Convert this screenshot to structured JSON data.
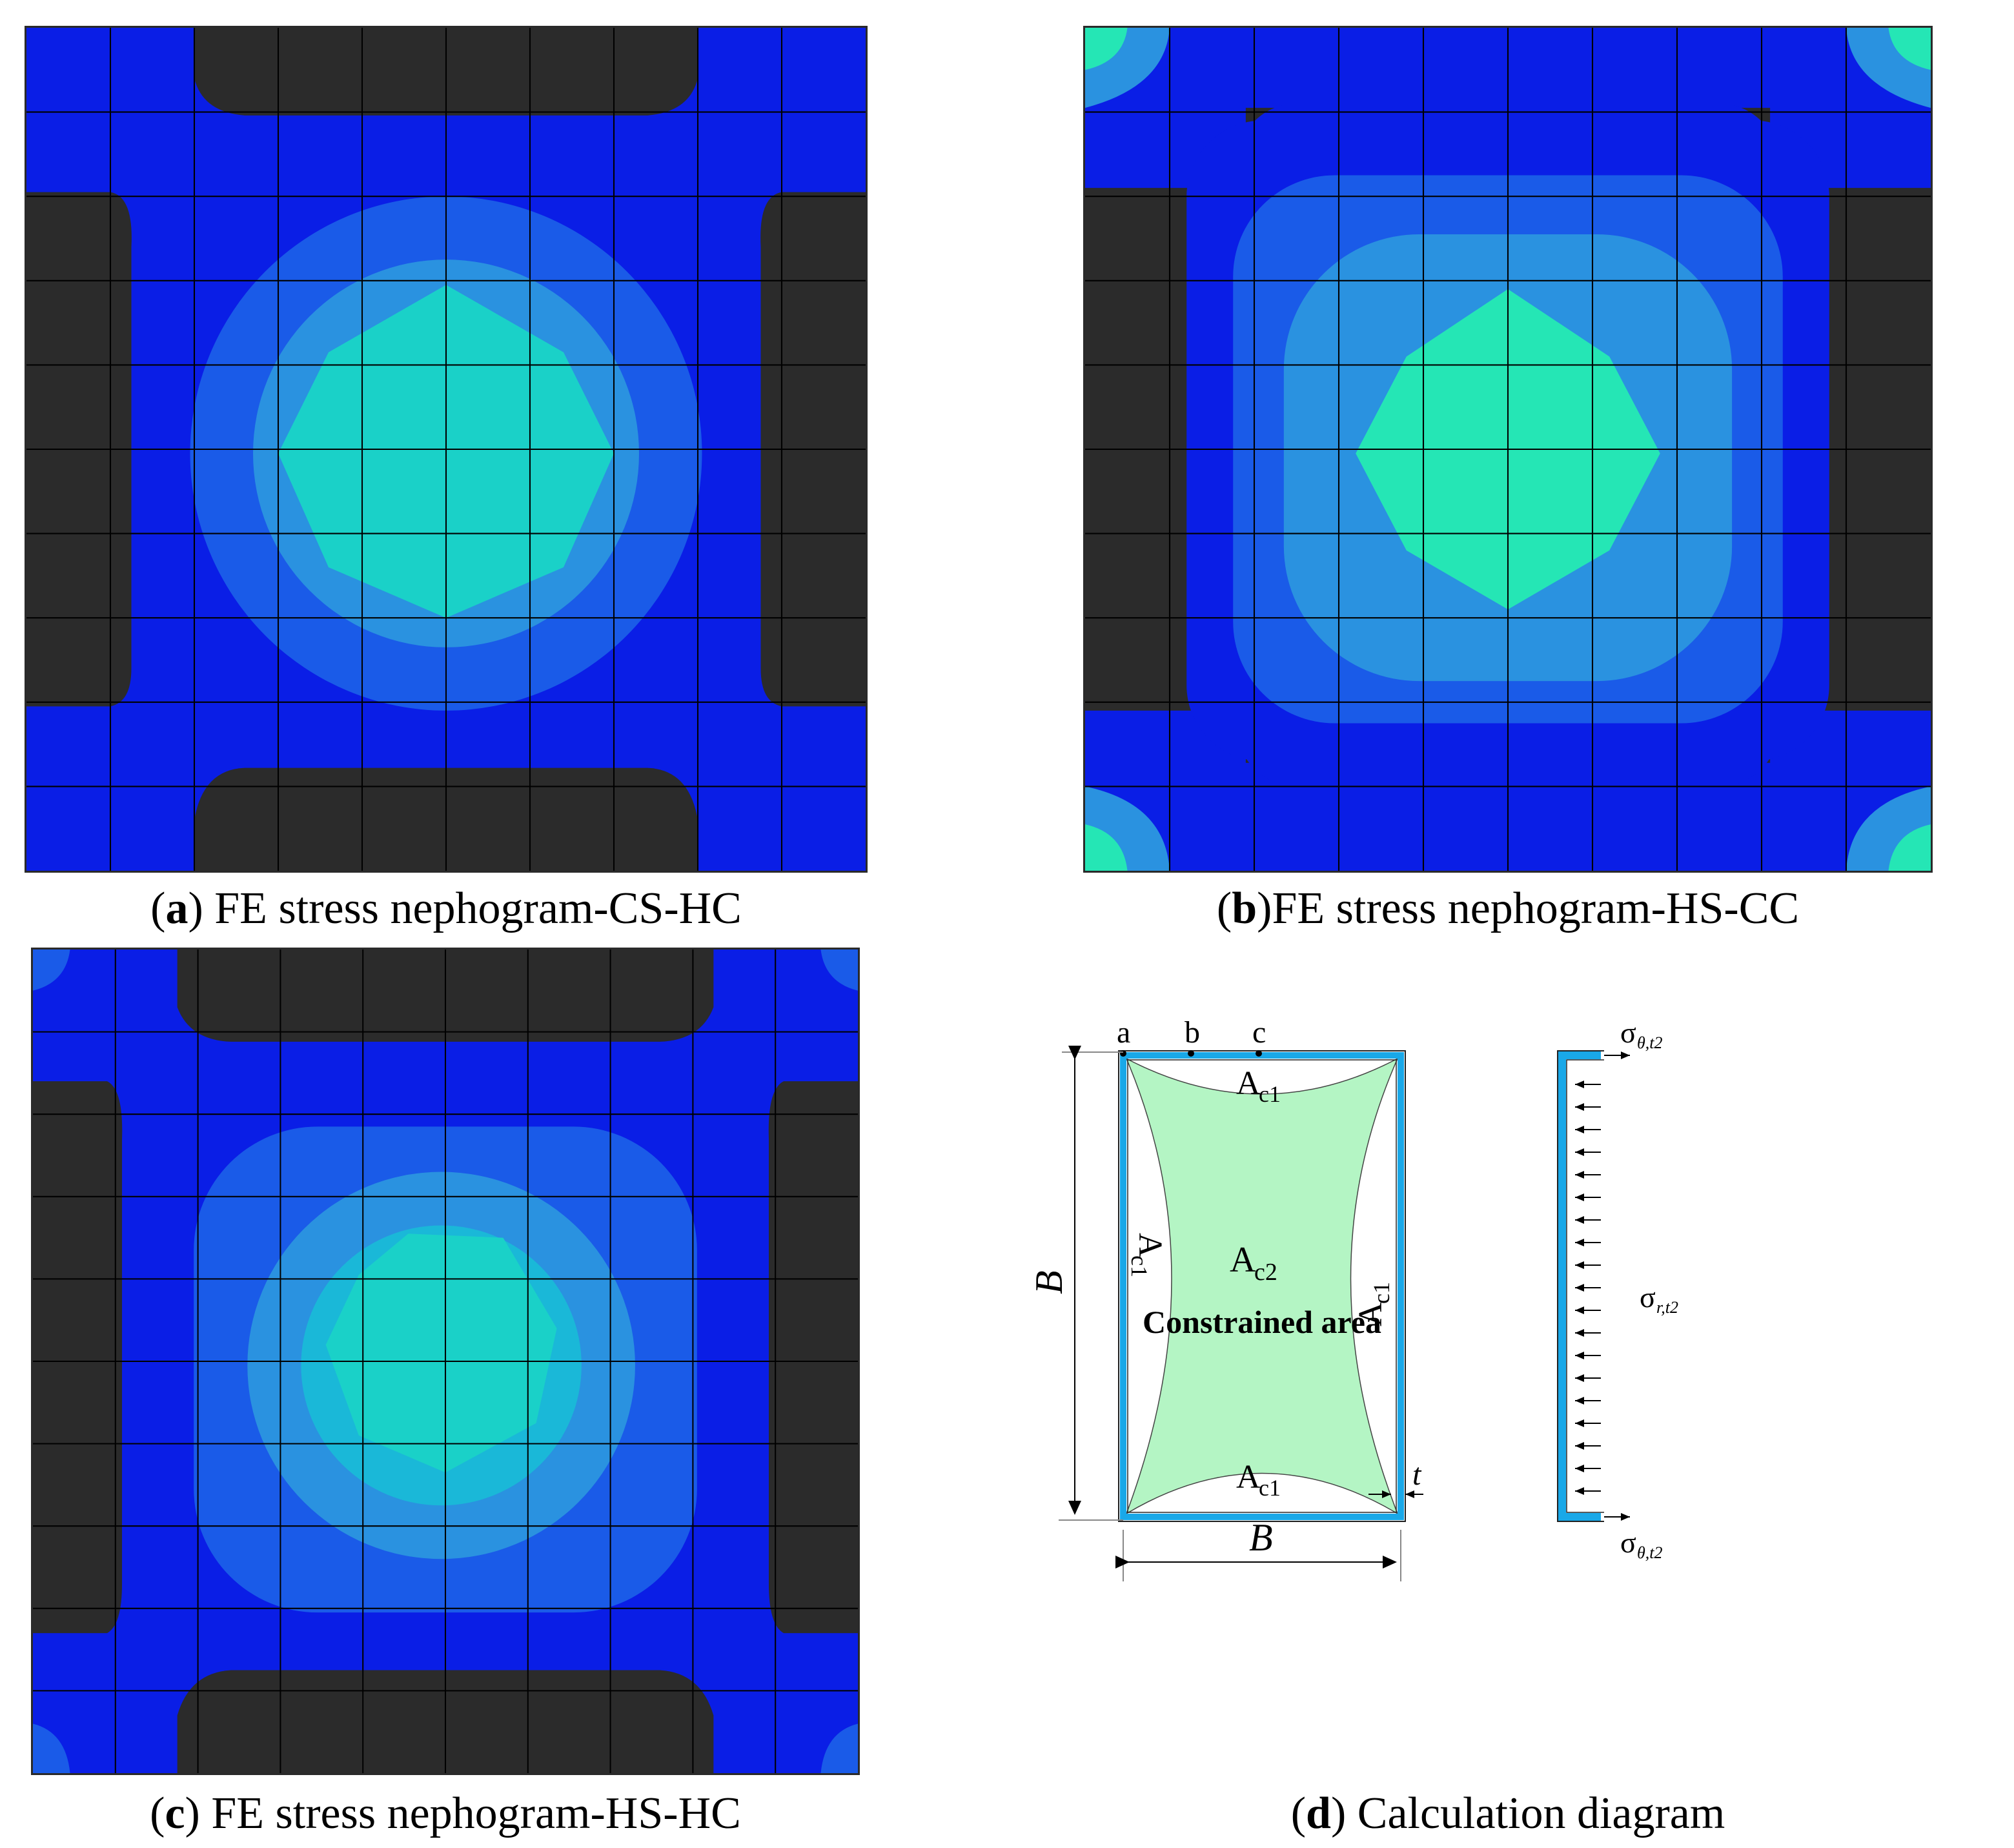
{
  "panels": [
    {
      "id": "a",
      "letter": "a",
      "open": "(",
      "close": ")",
      "title": " FE stress nephogram-CS-HC"
    },
    {
      "id": "b",
      "letter": "b",
      "open": "(",
      "close": ")",
      "title": "FE stress nephogram-HS-CC"
    },
    {
      "id": "c",
      "letter": "c",
      "open": "(",
      "close": ")",
      "title": " FE stress nephogram-HS-HC"
    },
    {
      "id": "d",
      "letter": "d",
      "open": "(",
      "close": ")",
      "title": " Calculation diagram"
    }
  ],
  "colors": {
    "dark": "#2b2b2b",
    "blue": "#0a1ee6",
    "mid_blue": "#1a5be8",
    "light_blue": "#2a92e0",
    "cyan": "#1ad1c8",
    "green_cyan": "#25e6b5",
    "grid": "#000000",
    "tube": "#19a8e8",
    "constrained": "#b4f5c4"
  },
  "diagram": {
    "points": [
      "a",
      "b",
      "c"
    ],
    "area_c1": "A",
    "area_c1_sub": "c1",
    "area_c2": "A",
    "area_c2_sub": "c2",
    "constrained_label": "Constrained area",
    "dim_B": "B",
    "thickness": "t",
    "sigma": "σ",
    "sigma_theta_sub": "θ,t2",
    "sigma_r_sub": "r,t2"
  }
}
